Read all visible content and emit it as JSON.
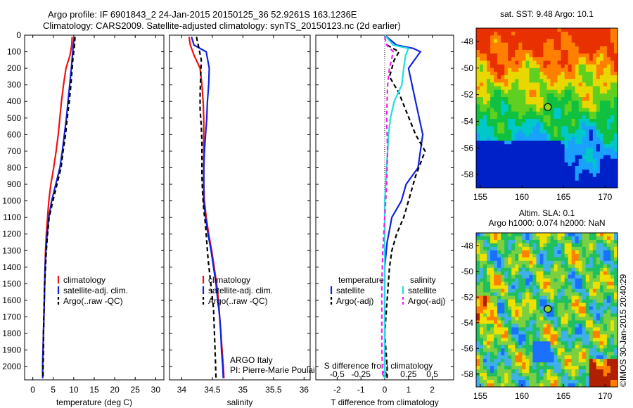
{
  "header": {
    "line1": "Argo profile: IF 6901843_2 24-Jan-2015 20150125_36 52.9261S 163.1236E",
    "line2": "Climatology: CARS2009. Satellite-adjusted climatology: synTS_20150123.nc (2d earlier)"
  },
  "colors": {
    "climatology": "#ee1111",
    "satellite": "#1122dd",
    "argo": "#000000",
    "sal_sat": "#22dddd",
    "sal_argo": "#ee22ee"
  },
  "chart_data": [
    {
      "type": "line",
      "id": "temperature",
      "xlabel": "temperature (deg C)",
      "ylabel": "",
      "xlim": [
        -2,
        32
      ],
      "ylim": [
        2080,
        0
      ],
      "xticks": [
        "0",
        "5",
        "10",
        "15",
        "20",
        "25",
        "30"
      ],
      "yticks": [
        "0",
        "100",
        "200",
        "300",
        "400",
        "500",
        "600",
        "700",
        "800",
        "900",
        "1000",
        "1100",
        "1200",
        "1300",
        "1400",
        "1500",
        "1600",
        "1700",
        "1800",
        "1900",
        "2000"
      ],
      "legend": [
        "climatology",
        "satellite-adj. clim.",
        "Argo(..raw -QC)"
      ],
      "series": [
        {
          "name": "climatology",
          "color": "#ee1111",
          "dash": "none",
          "points": [
            [
              9.6,
              10
            ],
            [
              9.5,
              60
            ],
            [
              9.1,
              120
            ],
            [
              8.1,
              200
            ],
            [
              7.5,
              300
            ],
            [
              7.0,
              400
            ],
            [
              6.6,
              500
            ],
            [
              6.2,
              600
            ],
            [
              5.7,
              700
            ],
            [
              5.1,
              800
            ],
            [
              4.4,
              900
            ],
            [
              3.9,
              1000
            ],
            [
              3.6,
              1100
            ],
            [
              3.3,
              1200
            ],
            [
              3.1,
              1300
            ],
            [
              3.0,
              1400
            ],
            [
              2.9,
              1500
            ],
            [
              2.8,
              1600
            ],
            [
              2.7,
              1700
            ],
            [
              2.6,
              1800
            ],
            [
              2.5,
              1900
            ],
            [
              2.4,
              2000
            ],
            [
              2.4,
              2070
            ]
          ]
        },
        {
          "name": "satellite-adj. clim.",
          "color": "#1122dd",
          "dash": "none",
          "points": [
            [
              10.1,
              10
            ],
            [
              9.9,
              60
            ],
            [
              9.6,
              140
            ],
            [
              9.4,
              200
            ],
            [
              9.0,
              300
            ],
            [
              8.6,
              400
            ],
            [
              8.2,
              500
            ],
            [
              7.7,
              600
            ],
            [
              7.2,
              700
            ],
            [
              6.6,
              800
            ],
            [
              5.6,
              900
            ],
            [
              4.6,
              1000
            ],
            [
              3.9,
              1100
            ],
            [
              3.5,
              1200
            ],
            [
              3.2,
              1300
            ],
            [
              3.0,
              1400
            ],
            [
              2.9,
              1500
            ],
            [
              2.8,
              1600
            ],
            [
              2.7,
              1700
            ],
            [
              2.6,
              1800
            ],
            [
              2.5,
              1900
            ],
            [
              2.4,
              2000
            ],
            [
              2.4,
              2070
            ]
          ]
        },
        {
          "name": "Argo(..raw -QC)",
          "color": "#000000",
          "dash": "6,4",
          "points": [
            [
              10.3,
              10
            ],
            [
              10.2,
              60
            ],
            [
              9.8,
              140
            ],
            [
              9.6,
              200
            ],
            [
              9.3,
              300
            ],
            [
              8.9,
              400
            ],
            [
              8.4,
              500
            ],
            [
              8.0,
              600
            ],
            [
              7.4,
              700
            ],
            [
              6.9,
              800
            ],
            [
              5.9,
              900
            ],
            [
              4.9,
              1000
            ],
            [
              4.0,
              1100
            ],
            [
              3.6,
              1200
            ],
            [
              3.3,
              1300
            ],
            [
              3.1,
              1400
            ],
            [
              2.9,
              1500
            ],
            [
              2.8,
              1600
            ],
            [
              2.7,
              1700
            ],
            [
              2.6,
              1800
            ],
            [
              2.6,
              1900
            ],
            [
              2.5,
              2000
            ],
            [
              2.5,
              2070
            ]
          ]
        }
      ]
    },
    {
      "type": "line",
      "id": "salinity",
      "xlabel": "salinity",
      "ylabel": "",
      "xlim": [
        33.8,
        36.1
      ],
      "ylim": [
        2080,
        0
      ],
      "xticks": [
        "34",
        "34.5",
        "35",
        "35.5",
        "36"
      ],
      "legend": [
        "climatology",
        "satellite-adj. clim.",
        "Argo(..raw -QC)"
      ],
      "annotation": [
        "ARGO Italy",
        "PI: Pierre-Marie Poulain"
      ],
      "series": [
        {
          "name": "climatology",
          "color": "#ee1111",
          "dash": "none",
          "points": [
            [
              34.12,
              10
            ],
            [
              34.14,
              60
            ],
            [
              34.2,
              120
            ],
            [
              34.3,
              200
            ],
            [
              34.33,
              300
            ],
            [
              34.35,
              400
            ],
            [
              34.36,
              500
            ],
            [
              34.36,
              600
            ],
            [
              34.36,
              700
            ],
            [
              34.36,
              800
            ],
            [
              34.36,
              900
            ],
            [
              34.37,
              1000
            ],
            [
              34.4,
              1100
            ],
            [
              34.44,
              1200
            ],
            [
              34.49,
              1300
            ],
            [
              34.53,
              1400
            ],
            [
              34.57,
              1500
            ],
            [
              34.6,
              1600
            ],
            [
              34.62,
              1700
            ],
            [
              34.64,
              1800
            ],
            [
              34.66,
              1900
            ],
            [
              34.68,
              2000
            ],
            [
              34.69,
              2070
            ]
          ]
        },
        {
          "name": "satellite-adj. clim.",
          "color": "#1122dd",
          "dash": "none",
          "points": [
            [
              34.16,
              10
            ],
            [
              34.2,
              60
            ],
            [
              34.4,
              100
            ],
            [
              34.45,
              200
            ],
            [
              34.44,
              300
            ],
            [
              34.42,
              400
            ],
            [
              34.41,
              500
            ],
            [
              34.39,
              600
            ],
            [
              34.37,
              700
            ],
            [
              34.36,
              800
            ],
            [
              34.36,
              900
            ],
            [
              34.36,
              1000
            ],
            [
              34.39,
              1100
            ],
            [
              34.43,
              1200
            ],
            [
              34.48,
              1300
            ],
            [
              34.52,
              1400
            ],
            [
              34.56,
              1500
            ],
            [
              34.59,
              1600
            ],
            [
              34.62,
              1700
            ],
            [
              34.64,
              1800
            ],
            [
              34.65,
              1900
            ],
            [
              34.67,
              2000
            ],
            [
              34.68,
              2070
            ]
          ]
        },
        {
          "name": "Argo(..raw -QC)",
          "color": "#000000",
          "dash": "6,4",
          "points": [
            [
              34.24,
              10
            ],
            [
              34.27,
              60
            ],
            [
              34.32,
              150
            ],
            [
              34.31,
              250
            ],
            [
              34.3,
              350
            ],
            [
              34.3,
              450
            ],
            [
              34.32,
              550
            ],
            [
              34.33,
              650
            ],
            [
              34.33,
              750
            ],
            [
              34.33,
              850
            ],
            [
              34.34,
              950
            ],
            [
              34.36,
              1050
            ],
            [
              34.39,
              1150
            ],
            [
              34.41,
              1250
            ],
            [
              34.43,
              1350
            ],
            [
              34.46,
              1450
            ],
            [
              34.49,
              1550
            ],
            [
              34.52,
              1650
            ],
            [
              34.53,
              1750
            ],
            [
              34.54,
              1850
            ],
            [
              34.55,
              1950
            ],
            [
              34.56,
              2070
            ]
          ]
        }
      ]
    },
    {
      "type": "line",
      "id": "difference",
      "xlabel": "T difference from climatology",
      "xlabel_top": "S difference from climatology",
      "xlim": [
        -2.9,
        2.9
      ],
      "ylim": [
        2080,
        0
      ],
      "xticks_bottom": [
        "-2",
        "-1",
        "0",
        "1",
        "2"
      ],
      "xticks_top": [
        "-0.5",
        "-0.25",
        "0",
        "0.25",
        "0.5"
      ],
      "legend_temperature": [
        "temperature",
        "satellite",
        "Argo(-adj)"
      ],
      "legend_salinity": [
        "salinity",
        "satellite",
        "Argo(-adj)"
      ],
      "series": [
        {
          "name": "satellite",
          "quantity": "temperature",
          "color": "#1122dd",
          "dash": "none",
          "points": [
            [
              0.0,
              0
            ],
            [
              0.5,
              60
            ],
            [
              1.2,
              80
            ],
            [
              1.5,
              100
            ],
            [
              1.3,
              140
            ],
            [
              1.0,
              200
            ],
            [
              1.3,
              400
            ],
            [
              1.6,
              600
            ],
            [
              1.5,
              700
            ],
            [
              1.4,
              800
            ],
            [
              0.9,
              900
            ],
            [
              0.7,
              1000
            ],
            [
              0.3,
              1100
            ],
            [
              0.1,
              1250
            ],
            [
              0.0,
              1400
            ],
            [
              0.0,
              1600
            ],
            [
              0.0,
              1800
            ],
            [
              0.0,
              2000
            ],
            [
              0.0,
              2070
            ]
          ]
        },
        {
          "name": "Argo(-adj)",
          "quantity": "temperature",
          "color": "#000000",
          "dash": "6,4",
          "points": [
            [
              0.1,
              60
            ],
            [
              0.6,
              100
            ],
            [
              0.4,
              150
            ],
            [
              0.2,
              250
            ],
            [
              0.6,
              350
            ],
            [
              1.3,
              600
            ],
            [
              1.7,
              700
            ],
            [
              1.3,
              850
            ],
            [
              1.0,
              1000
            ],
            [
              0.8,
              1100
            ],
            [
              0.5,
              1200
            ],
            [
              0.3,
              1300
            ],
            [
              0.2,
              1400
            ],
            [
              0.1,
              1600
            ],
            [
              0.0,
              1800
            ],
            [
              0.1,
              2000
            ],
            [
              0.1,
              2070
            ]
          ]
        },
        {
          "name": "satellite",
          "quantity": "salinity",
          "color": "#22dddd",
          "dash": "none",
          "points": [
            [
              0.0,
              0
            ],
            [
              0.09,
              60
            ],
            [
              0.25,
              80
            ],
            [
              0.22,
              120
            ],
            [
              0.2,
              200
            ],
            [
              0.18,
              300
            ],
            [
              0.1,
              400
            ],
            [
              0.06,
              500
            ],
            [
              0.04,
              600
            ],
            [
              0.02,
              800
            ],
            [
              0.0,
              1000
            ],
            [
              0.0,
              1200
            ],
            [
              0.0,
              1400
            ],
            [
              0.0,
              1600
            ],
            [
              0.0,
              1800
            ],
            [
              0.0,
              2070
            ]
          ]
        },
        {
          "name": "Argo(-adj)",
          "quantity": "salinity",
          "color": "#ee22ee",
          "dash": "6,4",
          "points": [
            [
              0.0,
              10
            ],
            [
              0.02,
              60
            ],
            [
              0.09,
              100
            ],
            [
              0.05,
              200
            ],
            [
              0.03,
              300
            ],
            [
              0.02,
              500
            ],
            [
              0.03,
              700
            ],
            [
              0.02,
              900
            ],
            [
              0.0,
              1100
            ],
            [
              -0.02,
              1300
            ],
            [
              -0.03,
              1500
            ],
            [
              -0.03,
              1700
            ],
            [
              -0.03,
              1900
            ],
            [
              -0.02,
              2070
            ]
          ]
        }
      ]
    },
    {
      "type": "heatmap",
      "id": "sst_map",
      "title": "sat. SST: 9.48  Argo: 10.1",
      "xlim": [
        154.5,
        171.5
      ],
      "ylim": [
        -59,
        -47
      ],
      "xticks": [
        "155",
        "160",
        "165",
        "170"
      ],
      "yticks": [
        "-48",
        "-50",
        "-52",
        "-54",
        "-56",
        "-58"
      ],
      "argo_position": [
        163.12,
        -52.93
      ]
    },
    {
      "type": "heatmap",
      "id": "sla_map",
      "title": "Altim. SLA: 0.1",
      "subtitle": "Argo h1000: 0.074 h2000: NaN",
      "xlim": [
        154.5,
        171.5
      ],
      "ylim": [
        -59,
        -47
      ],
      "xticks": [
        "155",
        "160",
        "165",
        "170"
      ],
      "yticks": [
        "-48",
        "-50",
        "-52",
        "-54",
        "-56",
        "-58"
      ],
      "argo_position": [
        163.12,
        -52.93
      ],
      "credit": "©IMOS 30-Jan-2015 20:40:29"
    }
  ]
}
